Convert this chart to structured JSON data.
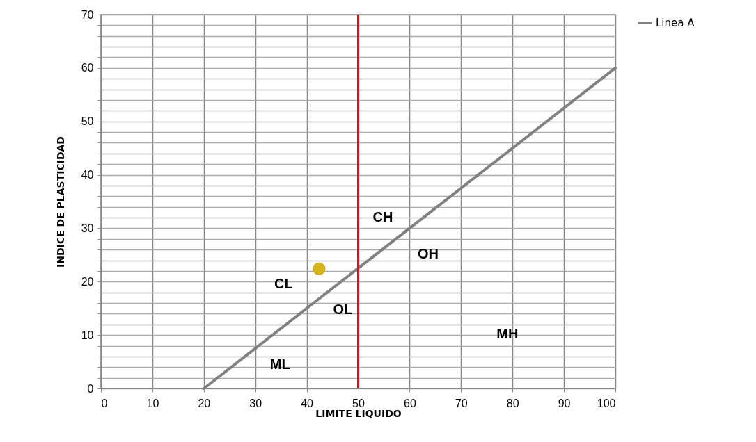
{
  "chart_data": {
    "type": "line",
    "xlabel": "LIMITE LIQUIDO",
    "ylabel": "INDICE DE PLASTICIDAD",
    "xlim": [
      0,
      100
    ],
    "xticks": [
      0,
      10,
      20,
      30,
      40,
      50,
      60,
      70,
      80,
      90,
      100
    ],
    "ylim": [
      0,
      70
    ],
    "yticks": [
      0,
      {
        "value": 2,
        "label": null
      },
      {
        "value": 4,
        "label": null
      },
      {
        "value": 6,
        "label": null
      },
      {
        "value": 8,
        "label": null
      },
      10,
      {
        "value": 12,
        "label": null
      },
      {
        "value": 14,
        "label": null
      },
      {
        "value": 16,
        "label": null
      },
      {
        "value": 18,
        "label": null
      },
      20,
      {
        "value": 22,
        "label": null
      },
      {
        "value": 24,
        "label": null
      },
      {
        "value": 26,
        "label": null
      },
      {
        "value": 28,
        "label": null
      },
      30,
      {
        "value": 32,
        "label": null
      },
      {
        "value": 34,
        "label": null
      },
      {
        "value": 36,
        "label": null
      },
      {
        "value": 38,
        "label": null
      },
      40,
      {
        "value": 42,
        "label": null
      },
      {
        "value": 44,
        "label": null
      },
      {
        "value": 46,
        "label": null
      },
      {
        "value": 48,
        "label": null
      },
      50,
      {
        "value": 52,
        "label": null
      },
      {
        "value": 54,
        "label": null
      },
      {
        "value": 56,
        "label": null
      },
      {
        "value": 58,
        "label": null
      },
      60,
      {
        "value": 62,
        "label": null
      },
      {
        "value": 64,
        "label": null
      },
      {
        "value": 66,
        "label": null
      },
      {
        "value": 68,
        "label": null
      },
      70
    ],
    "grid": true,
    "legend": "right",
    "series": [
      {
        "name": "Linea A",
        "color": "#808080",
        "x": [
          20,
          100
        ],
        "values": [
          0,
          60
        ]
      },
      {
        "type": "scatter",
        "color": "#d4b41c",
        "x": [
          42.4
        ],
        "values": [
          22.4
        ]
      }
    ],
    "ref_lines": [
      {
        "axis": "x",
        "value": 50,
        "color": "#ff0000"
      }
    ],
    "annotations": [
      "CH",
      "OH",
      "CL",
      "OL",
      "ML",
      "MH"
    ]
  }
}
